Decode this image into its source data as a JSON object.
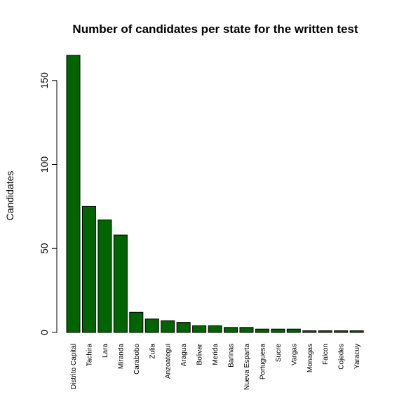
{
  "chart_data": {
    "type": "bar",
    "title": "Number of candidates per state for the written test",
    "xlabel": "",
    "ylabel": "Candidates",
    "categories": [
      "Distrito Capital",
      "Tachira",
      "Lara",
      "Miranda",
      "Carabobo",
      "Zulia",
      "Anzoategui",
      "Aragua",
      "Bolivar",
      "Merida",
      "Barinas",
      "Nueva Esparta",
      "Portuguesa",
      "Sucre",
      "Vargas",
      "Monagas",
      "Falcon",
      "Cojedes",
      "Yaracuy"
    ],
    "values": [
      165,
      75,
      67,
      58,
      12,
      8,
      7,
      6,
      4,
      4,
      3,
      3,
      2,
      2,
      2,
      1,
      1,
      1,
      1
    ],
    "ylim": [
      0,
      165
    ],
    "yticks": [
      0,
      50,
      100,
      150
    ],
    "grid": false,
    "bar_color": "#006400"
  }
}
